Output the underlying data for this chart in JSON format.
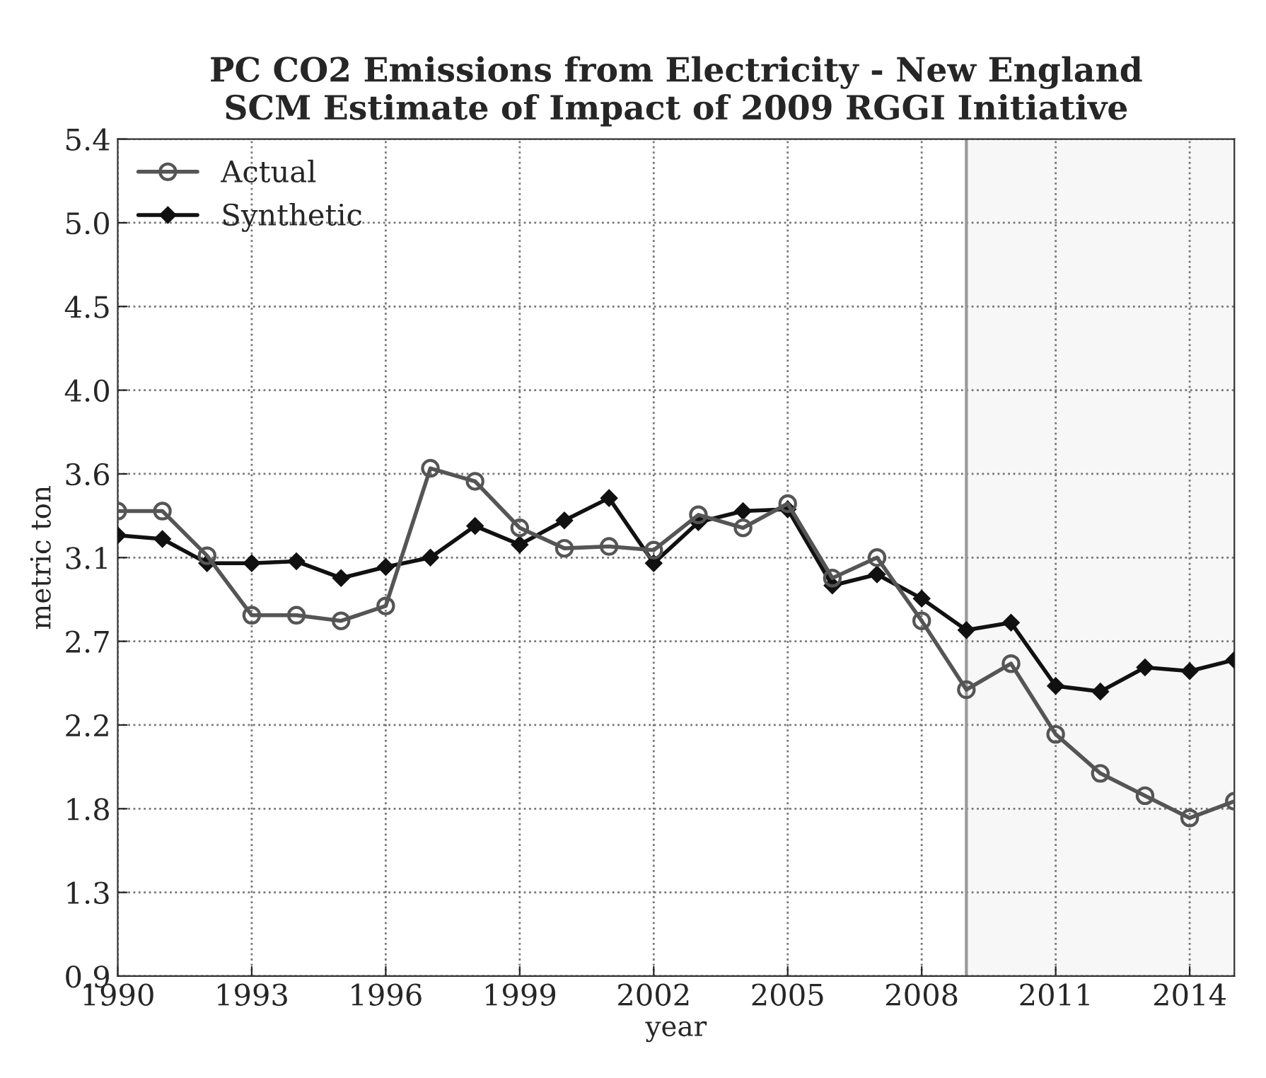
{
  "chart_data": {
    "type": "line",
    "title": "PC CO2 Emissions from Electricity - New England\nSCM Estimate of Impact of 2009 RGGI Initiative",
    "xlabel": "year",
    "ylabel": "metric ton",
    "x": [
      1990,
      1991,
      1992,
      1993,
      1994,
      1995,
      1996,
      1997,
      1998,
      1999,
      2000,
      2001,
      2002,
      2003,
      2004,
      2005,
      2006,
      2007,
      2008,
      2009,
      2010,
      2011,
      2012,
      2013,
      2014,
      2015
    ],
    "series": [
      {
        "name": "Actual",
        "color": "#555555",
        "marker": "circle",
        "values": [
          3.4,
          3.4,
          3.16,
          2.84,
          2.84,
          2.81,
          2.89,
          3.63,
          3.56,
          3.31,
          3.2,
          3.21,
          3.19,
          3.38,
          3.31,
          3.44,
          3.04,
          3.15,
          2.81,
          2.44,
          2.58,
          2.2,
          1.99,
          1.87,
          1.75,
          1.84
        ]
      },
      {
        "name": "Synthetic",
        "color": "#111111",
        "marker": "diamond",
        "values": [
          3.27,
          3.25,
          3.12,
          3.12,
          3.13,
          3.04,
          3.1,
          3.15,
          3.32,
          3.22,
          3.35,
          3.47,
          3.12,
          3.34,
          3.4,
          3.41,
          3.0,
          3.06,
          2.93,
          2.76,
          2.8,
          2.46,
          2.43,
          2.56,
          2.54,
          2.6
        ]
      }
    ],
    "xlim": [
      1990,
      2015
    ],
    "xticks": [
      1990,
      1993,
      1996,
      1999,
      2002,
      2005,
      2008,
      2011,
      2014
    ],
    "ylim": [
      0.9,
      5.4
    ],
    "yticks": [
      0.9,
      {
        "value": 1.35,
        "label": "1.3"
      },
      1.8,
      {
        "value": 2.25,
        "label": "2.2"
      },
      2.7,
      {
        "value": 3.15,
        "label": "3.1"
      },
      3.6,
      {
        "value": 4.05,
        "label": "4.0"
      },
      4.5,
      {
        "value": 4.95,
        "label": "5.0"
      },
      5.4
    ],
    "ref_lines": [
      {
        "axis": "x",
        "value": 2009,
        "color": "#999999",
        "line_style": "solid"
      }
    ],
    "bands": [
      {
        "axis": "x",
        "from": 2009,
        "to": 2015,
        "color": "#f7f7f7"
      }
    ],
    "grid": true,
    "line_style": "solid",
    "legend": "top left"
  }
}
